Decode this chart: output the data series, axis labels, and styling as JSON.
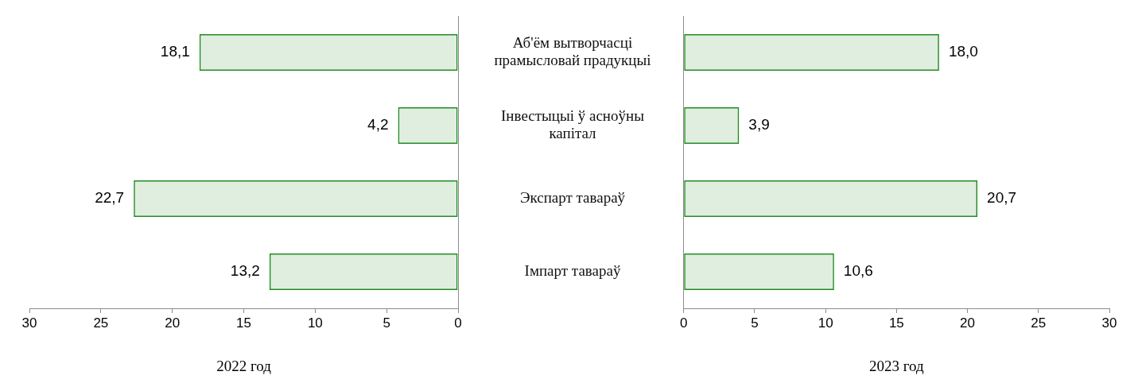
{
  "chart_data": [
    {
      "type": "bar",
      "orientation": "horizontal",
      "categories": [
        "Аб'ём вытворчасці прамысловай прадукцыі",
        "Інвестыцыі ў асноўны капітал",
        "Экспарт тавараў",
        "Імпарт тавараў"
      ],
      "values": [
        18.1,
        4.2,
        22.7,
        13.2
      ],
      "value_labels": [
        "18,1",
        "4,2",
        "22,7",
        "13,2"
      ],
      "color": "#1f8a1f",
      "xlim": [
        30,
        0
      ],
      "xticks": [
        30,
        25,
        20,
        15,
        10,
        5,
        0
      ],
      "xlabel": "2022 год"
    },
    {
      "type": "bar",
      "orientation": "horizontal",
      "categories": [
        null,
        null,
        null,
        null
      ],
      "values": [
        18.0,
        3.9,
        20.7,
        10.6
      ],
      "value_labels": [
        "18,0",
        "3,9",
        "20,7",
        "10,6"
      ],
      "color": "#1f8a1f",
      "xlim": [
        0,
        30
      ],
      "xticks": [
        0,
        5,
        10,
        15,
        20,
        25,
        30
      ],
      "xlabel": "2023 год"
    }
  ]
}
